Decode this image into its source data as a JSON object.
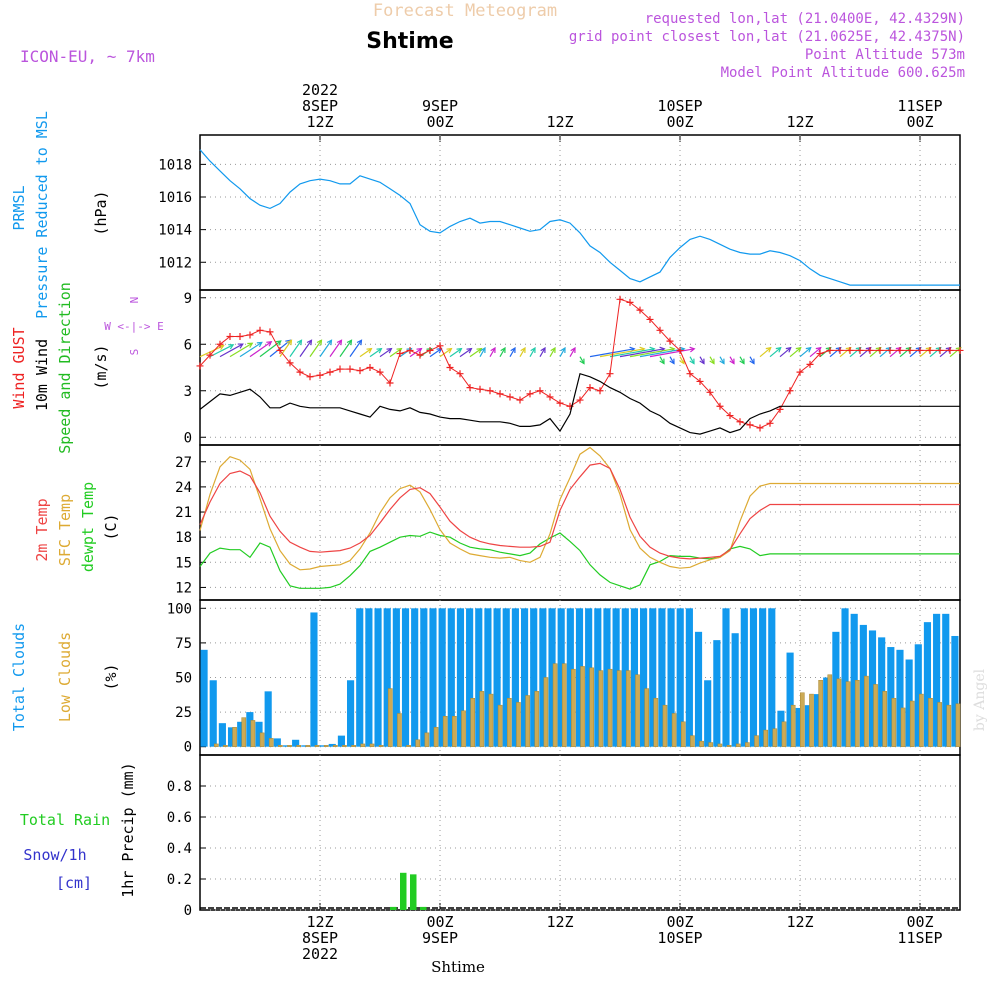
{
  "header": {
    "title_top": "Forecast Meteogram",
    "title_main": "Shtime",
    "model": "ICON-EU, ~ 7km",
    "requested": "requested lon,lat (21.0400E, 42.4329N)",
    "grid_point": "grid point closest lon,lat (21.0625E, 42.4375N)",
    "point_alt": "Point Altitude 573m",
    "model_alt": "Model Point Altitude 600.625m",
    "watermark": "by Angel",
    "xlabel": "Shtime"
  },
  "colors": {
    "pressure": "#1199ee",
    "gust": "#ee2222",
    "wind": "#000000",
    "dir": "#22bb22",
    "t2m": "#ee4444",
    "tsfc": "#ddaa33",
    "dewpt": "#22cc22",
    "total_clouds": "#1199ee",
    "low_clouds": "#ccaa55",
    "rain": "#22cc22",
    "snow": "#3333cc",
    "header_purple": "#bb55dd",
    "header_tan": "#eeccaa"
  },
  "time_axis": {
    "top_labels": [
      {
        "h": 12,
        "lines": [
          "2022",
          "8SEP",
          "12Z"
        ]
      },
      {
        "h": 24,
        "lines": [
          "9SEP",
          "00Z"
        ]
      },
      {
        "h": 36,
        "lines": [
          "12Z"
        ]
      },
      {
        "h": 48,
        "lines": [
          "10SEP",
          "00Z"
        ]
      },
      {
        "h": 60,
        "lines": [
          "12Z"
        ]
      },
      {
        "h": 72,
        "lines": [
          "11SEP",
          "00Z"
        ]
      }
    ],
    "bottom_labels": [
      {
        "h": 12,
        "lines": [
          "12Z",
          "8SEP",
          "2022"
        ]
      },
      {
        "h": 24,
        "lines": [
          "00Z",
          "9SEP"
        ]
      },
      {
        "h": 36,
        "lines": [
          "12Z"
        ]
      },
      {
        "h": 48,
        "lines": [
          "00Z",
          "10SEP"
        ]
      },
      {
        "h": 60,
        "lines": [
          "12Z"
        ]
      },
      {
        "h": 72,
        "lines": [
          "00Z",
          "11SEP"
        ]
      }
    ]
  },
  "chart_data": [
    {
      "type": "line",
      "title": "PRMSL Pressure Reduced to MSL",
      "ylabels": [
        "PRMSL",
        "Pressure Reduced to MSL",
        "(hPa)"
      ],
      "ylim": [
        1010.3,
        1019.8
      ],
      "yticks": [
        1012,
        1014,
        1016,
        1018
      ],
      "x_hours_range": [
        0,
        76
      ],
      "series": [
        {
          "name": "PRMSL",
          "x": [
            0,
            1,
            2,
            3,
            4,
            5,
            6,
            7,
            8,
            9,
            10,
            11,
            12,
            13,
            14,
            15,
            16,
            17,
            18,
            19,
            20,
            21,
            22,
            23,
            24,
            25,
            26,
            27,
            28,
            29,
            30,
            31,
            32,
            33,
            34,
            35,
            36,
            37,
            38,
            39,
            40,
            41,
            42,
            43,
            44,
            45,
            46,
            47,
            48,
            49,
            50,
            51,
            52,
            53,
            54,
            55,
            56,
            57,
            58,
            59,
            60,
            61,
            62,
            63,
            64,
            65,
            66,
            67,
            68,
            69,
            70,
            71,
            72,
            73,
            74,
            75,
            76
          ],
          "values": [
            1018.9,
            1018.2,
            1017.6,
            1017.0,
            1016.5,
            1015.9,
            1015.5,
            1015.3,
            1015.6,
            1016.3,
            1016.8,
            1017.0,
            1017.1,
            1017.0,
            1016.8,
            1016.8,
            1017.3,
            1017.1,
            1016.9,
            1016.5,
            1016.1,
            1015.6,
            1014.3,
            1013.9,
            1013.8,
            1014.2,
            1014.5,
            1014.7,
            1014.4,
            1014.5,
            1014.5,
            1014.3,
            1014.1,
            1013.9,
            1014.0,
            1014.5,
            1014.6,
            1014.4,
            1013.8,
            1013.0,
            1012.6,
            1012.0,
            1011.5,
            1011.0,
            1010.8,
            1011.1,
            1011.4,
            1012.3,
            1012.9,
            1013.4,
            1013.6,
            1013.4,
            1013.1,
            1012.8,
            1012.6,
            1012.5,
            1012.5,
            1012.7,
            1012.6,
            1012.4,
            1012.1,
            1011.6,
            1011.2,
            1011.0,
            1010.8,
            1010.6,
            1010.6,
            1010.6,
            1010.6,
            1010.6,
            1010.6,
            1010.6,
            1010.6,
            1010.6,
            1010.6,
            1010.6,
            1010.6
          ]
        }
      ]
    },
    {
      "type": "line",
      "title": "Wind GUST, 10m Wind Speed and Direction",
      "ylabels": [
        "Wind GUST",
        "10m Wind",
        "Speed and Direction",
        "(m/s)"
      ],
      "compass": "W <-|-> E",
      "compass_n": "N",
      "compass_s": "S",
      "ylim": [
        -0.5,
        9.5
      ],
      "yticks": [
        0,
        3,
        6,
        9
      ],
      "series": [
        {
          "name": "Wind GUST",
          "values": [
            4.6,
            5.3,
            6.0,
            6.5,
            6.5,
            6.6,
            6.9,
            6.8,
            5.6,
            4.8,
            4.2,
            3.9,
            4.0,
            4.2,
            4.4,
            4.4,
            4.3,
            4.5,
            4.2,
            3.5,
            5.4,
            5.6,
            5.3,
            5.6,
            5.9,
            4.5,
            4.1,
            3.2,
            3.1,
            3.0,
            2.8,
            2.6,
            2.4,
            2.8,
            3.0,
            2.6,
            2.2,
            2.0,
            2.4,
            3.2,
            3.0,
            4.1,
            8.9,
            8.7,
            8.2,
            7.6,
            6.9,
            6.2,
            5.6,
            4.1,
            3.6,
            2.9,
            2.0,
            1.4,
            1.0,
            0.8,
            0.6,
            0.9,
            1.8,
            3.0,
            4.2,
            4.7,
            5.4,
            5.6,
            5.6,
            5.6,
            5.6,
            5.6,
            5.6,
            5.6,
            5.6,
            5.6,
            5.6,
            5.6,
            5.6,
            5.6,
            5.6
          ]
        },
        {
          "name": "10m Wind",
          "values": [
            1.8,
            2.3,
            2.8,
            2.7,
            2.9,
            3.1,
            2.6,
            1.9,
            1.9,
            2.2,
            2.0,
            1.9,
            1.9,
            1.9,
            1.9,
            1.7,
            1.5,
            1.3,
            2.0,
            1.8,
            1.7,
            1.9,
            1.6,
            1.5,
            1.3,
            1.2,
            1.2,
            1.1,
            1.0,
            1.0,
            1.0,
            0.9,
            0.7,
            0.7,
            0.8,
            1.2,
            0.4,
            1.5,
            4.1,
            3.9,
            3.6,
            3.2,
            2.9,
            2.5,
            2.2,
            1.7,
            1.4,
            0.9,
            0.6,
            0.3,
            0.2,
            0.4,
            0.6,
            0.3,
            0.5,
            1.2,
            1.5,
            1.7,
            2.0,
            2.0,
            2.0,
            2.0,
            2.0,
            2.0,
            2.0,
            2.0,
            2.0,
            2.0,
            2.0,
            2.0,
            2.0,
            2.0,
            2.0,
            2.0,
            2.0,
            2.0,
            2.0
          ]
        }
      ]
    },
    {
      "type": "line",
      "title": "Temperatures",
      "ylabels": [
        "2m Temp",
        "SFC Temp",
        "dewpt Temp",
        "(C)"
      ],
      "ylim": [
        10.5,
        29
      ],
      "yticks": [
        12,
        15,
        18,
        21,
        24,
        27
      ],
      "series": [
        {
          "name": "2m Temp",
          "values": [
            19.5,
            22.2,
            24.4,
            25.6,
            25.9,
            25.3,
            23.3,
            20.5,
            18.7,
            17.4,
            16.8,
            16.3,
            16.2,
            16.3,
            16.4,
            16.7,
            17.3,
            18.2,
            19.7,
            21.3,
            22.7,
            23.7,
            23.9,
            23.2,
            21.6,
            19.9,
            18.8,
            18.0,
            17.5,
            17.2,
            17.0,
            16.9,
            16.8,
            16.8,
            16.9,
            17.4,
            21.2,
            23.7,
            25.2,
            26.6,
            26.8,
            26.2,
            23.7,
            20.4,
            18.1,
            16.8,
            16.1,
            15.7,
            15.5,
            15.4,
            15.5,
            15.6,
            15.7,
            16.5,
            18.4,
            20.2,
            21.2,
            21.9,
            21.9,
            21.9,
            21.9,
            21.9,
            21.9,
            21.9,
            21.9,
            21.9,
            21.9,
            21.9,
            21.9,
            21.9,
            21.9,
            21.9,
            21.9,
            21.9,
            21.9,
            21.9,
            21.9
          ]
        },
        {
          "name": "SFC Temp",
          "values": [
            18.8,
            23.1,
            26.4,
            27.6,
            27.2,
            26.1,
            22.6,
            19.0,
            16.4,
            14.8,
            14.1,
            14.2,
            14.5,
            14.6,
            14.7,
            15.2,
            16.6,
            18.5,
            20.9,
            22.7,
            23.8,
            24.2,
            23.4,
            21.3,
            18.9,
            17.3,
            16.6,
            16.0,
            15.8,
            15.6,
            15.5,
            15.6,
            15.2,
            15.0,
            15.6,
            18.4,
            22.5,
            25.1,
            27.9,
            28.7,
            27.7,
            26.2,
            23.1,
            18.9,
            16.7,
            15.6,
            15.0,
            14.5,
            14.3,
            14.4,
            14.9,
            15.3,
            15.6,
            16.4,
            19.9,
            22.9,
            24.1,
            24.4,
            24.4,
            24.4,
            24.4,
            24.4,
            24.4,
            24.4,
            24.4,
            24.4,
            24.4,
            24.4,
            24.4,
            24.4,
            24.4,
            24.4,
            24.4,
            24.4,
            24.4,
            24.4,
            24.4
          ]
        },
        {
          "name": "dewpt Temp",
          "values": [
            14.5,
            16.1,
            16.7,
            16.5,
            16.5,
            15.6,
            17.3,
            16.8,
            14.0,
            12.2,
            11.9,
            11.9,
            11.9,
            12.0,
            12.4,
            13.4,
            14.6,
            16.3,
            16.8,
            17.4,
            18.0,
            18.2,
            18.1,
            18.6,
            18.2,
            18.0,
            17.3,
            16.8,
            16.6,
            16.5,
            16.2,
            16.0,
            15.8,
            16.1,
            17.2,
            17.9,
            18.5,
            17.5,
            16.4,
            14.7,
            13.5,
            12.6,
            12.2,
            11.8,
            12.3,
            14.7,
            15.1,
            15.8,
            15.7,
            15.7,
            15.5,
            15.4,
            15.6,
            16.6,
            16.9,
            16.6,
            15.8,
            16.0,
            16.0,
            16.0,
            16.0,
            16.0,
            16.0,
            16.0,
            16.0,
            16.0,
            16.0,
            16.0,
            16.0,
            16.0,
            16.0,
            16.0,
            16.0,
            16.0,
            16.0,
            16.0,
            16.0
          ]
        }
      ]
    },
    {
      "type": "bar",
      "title": "Clouds",
      "ylabels": [
        "Total Clouds",
        "Low Clouds",
        "(%)"
      ],
      "ylim": [
        -6,
        106
      ],
      "yticks": [
        0,
        25,
        50,
        75,
        100
      ],
      "series": [
        {
          "name": "Total Clouds",
          "values": [
            70,
            48,
            17,
            14,
            18,
            25,
            18,
            40,
            6,
            1,
            5,
            1,
            97,
            1,
            2,
            8,
            48,
            100,
            100,
            100,
            100,
            100,
            100,
            100,
            100,
            100,
            100,
            100,
            100,
            100,
            100,
            100,
            100,
            100,
            100,
            100,
            100,
            100,
            100,
            100,
            100,
            100,
            100,
            100,
            100,
            100,
            100,
            100,
            100,
            100,
            100,
            100,
            100,
            100,
            83,
            48,
            77,
            100,
            82,
            100,
            100,
            100,
            100,
            26,
            68,
            28,
            30,
            38,
            50,
            83,
            100,
            96,
            88,
            84,
            79,
            72,
            70,
            63,
            74,
            90,
            96,
            96,
            80
          ]
        },
        {
          "name": "Low Clouds",
          "values": [
            0,
            2,
            1,
            14,
            21,
            19,
            10,
            6,
            1,
            1,
            1,
            1,
            1,
            1,
            1,
            1,
            1,
            2,
            2,
            1,
            42,
            24,
            1,
            5,
            10,
            14,
            22,
            22,
            26,
            35,
            40,
            38,
            30,
            35,
            32,
            37,
            40,
            50,
            60,
            60,
            56,
            58,
            57,
            55,
            56,
            55,
            55,
            52,
            42,
            35,
            30,
            24,
            18,
            8,
            4,
            3,
            2,
            1,
            2,
            3,
            8,
            12,
            13,
            18,
            30,
            39,
            38,
            48,
            52,
            49,
            47,
            48,
            51,
            45,
            40,
            35,
            28,
            33,
            38,
            35,
            32,
            30,
            31
          ]
        }
      ]
    },
    {
      "type": "bar",
      "title": "1hr Precip",
      "ylabels": [
        "Total Rain",
        "Snow/1h",
        "[cm]",
        "1hr Precip (mm)"
      ],
      "ylim": [
        0,
        1.0
      ],
      "yticks": [
        0,
        0.2,
        0.4,
        0.6,
        0.8
      ],
      "series": [
        {
          "name": "Total Rain",
          "x": [
            19,
            20,
            21,
            22
          ],
          "values": [
            0.02,
            0.24,
            0.23,
            0.02
          ]
        },
        {
          "name": "Snow/1h",
          "x": [],
          "values": []
        }
      ]
    }
  ]
}
